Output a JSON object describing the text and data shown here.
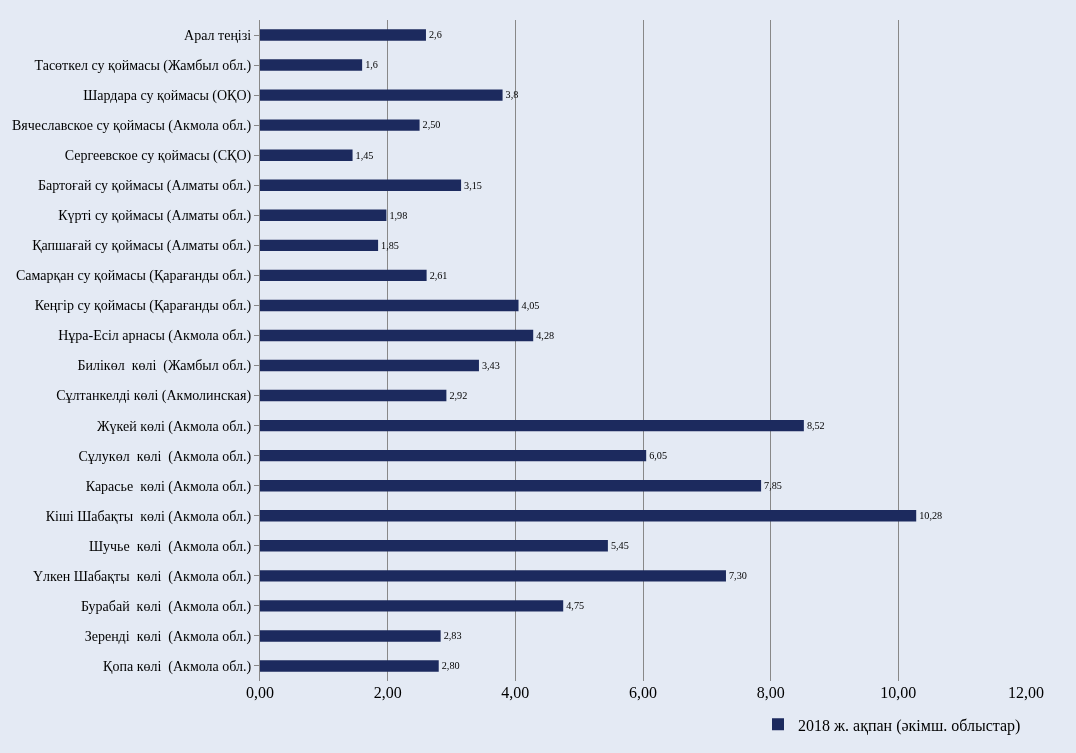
{
  "chart_data": {
    "type": "bar",
    "orientation": "horizontal",
    "categories": [
      "Арал теңізі",
      "Тасөткел су қоймасы (Жамбыл обл.)",
      "Шардара су қоймасы (ОҚО)",
      "Вячеславское су қоймасы (Акмола обл.)",
      "Сергеевское су қоймасы (СҚО)",
      "Бартоғай су қоймасы (Алматы обл.)",
      "Күрті су қоймасы (Алматы обл.)",
      "Қапшағай су қоймасы (Алматы обл.)",
      "Самарқан су қоймасы (Қарағанды обл.)",
      "Кеңгір су қоймасы (Қарағанды обл.)",
      "Нұра-Есіл арнасы (Акмола обл.)",
      "Билікөл  көлі  (Жамбыл обл.)",
      "Сұлтанкелді көлі (Акмолинская)",
      "Жүкей көлі (Акмола обл.)",
      "Сұлукөл  көлі  (Акмола обл.)",
      "Карасье  көлі (Акмола обл.)",
      "Кіші Шабақты  көлі (Акмола обл.)",
      "Шучье  көлі  (Акмола обл.)",
      "Үлкен Шабақты  көлі  (Акмола обл.)",
      "Бурабай  көлі  (Акмола обл.)",
      "Зеренді  көлі  (Акмола обл.)",
      "Қопа көлі  (Акмола обл.)"
    ],
    "series": [
      {
        "name": "2018 ж. ақпан (әкімш. облыстар)",
        "color": "#1c2a5e",
        "values": [
          2.6,
          1.6,
          3.8,
          2.5,
          1.45,
          3.15,
          1.98,
          1.85,
          2.61,
          4.05,
          4.28,
          3.43,
          2.92,
          8.52,
          6.05,
          7.85,
          10.28,
          5.45,
          7.3,
          4.75,
          2.83,
          2.8
        ],
        "value_labels": [
          "2,6",
          "1,6",
          "3,8",
          "2,50",
          "1,45",
          "3,15",
          "1,98",
          "1,85",
          "2,61",
          "4,05",
          "4,28",
          "3,43",
          "2,92",
          "8,52",
          "6,05",
          "7,85",
          "10,28",
          "5,45",
          "7,30",
          "4,75",
          "2,83",
          "2,80"
        ]
      }
    ],
    "xlim": [
      0,
      12
    ],
    "xticks": [
      {
        "value": 0,
        "label": "0,00"
      },
      {
        "value": 2,
        "label": "2,00"
      },
      {
        "value": 4,
        "label": "4,00"
      },
      {
        "value": 6,
        "label": "6,00"
      },
      {
        "value": 8,
        "label": "8,00"
      },
      {
        "value": 10,
        "label": "10,00"
      },
      {
        "value": 12,
        "label": "12,00"
      }
    ],
    "grid": "x",
    "legend": "bottom right"
  }
}
